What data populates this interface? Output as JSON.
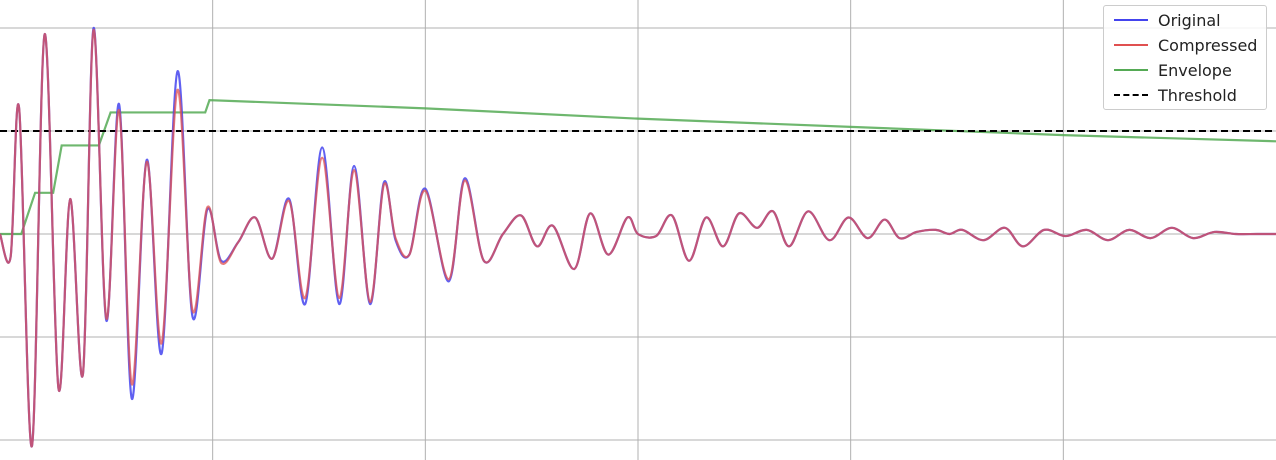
{
  "chart_data": {
    "type": "line",
    "xlim": [
      0,
      1.2
    ],
    "ylim": [
      -1.0,
      1.0
    ],
    "grid": true,
    "legend_placement": "top-right",
    "threshold": 0.5,
    "series": [
      {
        "name": "Original",
        "color": "#4444ee",
        "style": "solid",
        "x": [
          0.0,
          0.01,
          0.018,
          0.03,
          0.042,
          0.055,
          0.066,
          0.078,
          0.088,
          0.1,
          0.112,
          0.124,
          0.138,
          0.152,
          0.167,
          0.181,
          0.195,
          0.208,
          0.224,
          0.24,
          0.256,
          0.272,
          0.287,
          0.303,
          0.319,
          0.333,
          0.348,
          0.361,
          0.372,
          0.385,
          0.4,
          0.422,
          0.437,
          0.455,
          0.473,
          0.49,
          0.505,
          0.52,
          0.54,
          0.555,
          0.572,
          0.59,
          0.6,
          0.617,
          0.632,
          0.648,
          0.664,
          0.68,
          0.695,
          0.712,
          0.727,
          0.742,
          0.76,
          0.78,
          0.798,
          0.816,
          0.832,
          0.846,
          0.862,
          0.88,
          0.893,
          0.905,
          0.925,
          0.945,
          0.962,
          0.982,
          1.002,
          1.022,
          1.042,
          1.062,
          1.082,
          1.102,
          1.122,
          1.142,
          1.162,
          1.182,
          1.2
        ],
        "y": [
          0.0,
          -0.11,
          0.61,
          -1.03,
          0.97,
          -0.75,
          0.17,
          -0.68,
          1.0,
          -0.42,
          0.63,
          -0.8,
          0.36,
          -0.58,
          0.79,
          -0.4,
          0.12,
          -0.13,
          -0.04,
          0.08,
          -0.12,
          0.17,
          -0.34,
          0.42,
          -0.34,
          0.33,
          -0.34,
          0.25,
          -0.03,
          -0.1,
          0.22,
          -0.23,
          0.27,
          -0.13,
          0.0,
          0.09,
          -0.06,
          0.04,
          -0.17,
          0.1,
          -0.1,
          0.08,
          0.0,
          -0.01,
          0.09,
          -0.13,
          0.08,
          -0.06,
          0.1,
          0.03,
          0.11,
          -0.06,
          0.11,
          -0.03,
          0.08,
          -0.02,
          0.07,
          -0.02,
          0.01,
          0.02,
          0.0,
          0.02,
          -0.03,
          0.03,
          -0.06,
          0.02,
          -0.01,
          0.02,
          -0.03,
          0.02,
          -0.02,
          0.03,
          -0.02,
          0.01,
          0.0,
          0.0,
          0.0
        ]
      },
      {
        "name": "Compressed",
        "color": "#e05050",
        "style": "solid",
        "x": [
          0.0,
          0.01,
          0.018,
          0.03,
          0.042,
          0.055,
          0.066,
          0.078,
          0.088,
          0.1,
          0.112,
          0.124,
          0.138,
          0.152,
          0.167,
          0.181,
          0.195,
          0.208,
          0.224,
          0.24,
          0.256,
          0.272,
          0.287,
          0.303,
          0.319,
          0.333,
          0.348,
          0.361,
          0.372,
          0.385,
          0.4,
          0.422,
          0.437,
          0.455,
          0.473,
          0.49,
          0.505,
          0.52,
          0.54,
          0.555,
          0.572,
          0.59,
          0.6,
          0.617,
          0.632,
          0.648,
          0.664,
          0.68,
          0.695,
          0.712,
          0.727,
          0.742,
          0.76,
          0.78,
          0.798,
          0.816,
          0.832,
          0.846,
          0.862,
          0.88,
          0.893,
          0.905,
          0.925,
          0.945,
          0.962,
          0.982,
          1.002,
          1.022,
          1.042,
          1.062,
          1.082,
          1.102,
          1.122,
          1.142,
          1.162,
          1.182,
          1.2
        ],
        "y": [
          0.0,
          -0.11,
          0.61,
          -1.03,
          0.97,
          -0.75,
          0.17,
          -0.68,
          0.99,
          -0.41,
          0.6,
          -0.73,
          0.35,
          -0.53,
          0.7,
          -0.37,
          0.13,
          -0.14,
          -0.04,
          0.08,
          -0.12,
          0.16,
          -0.31,
          0.37,
          -0.31,
          0.31,
          -0.33,
          0.24,
          -0.02,
          -0.1,
          0.21,
          -0.22,
          0.26,
          -0.13,
          0.0,
          0.09,
          -0.06,
          0.04,
          -0.17,
          0.1,
          -0.1,
          0.08,
          0.0,
          -0.01,
          0.09,
          -0.13,
          0.08,
          -0.06,
          0.1,
          0.03,
          0.11,
          -0.06,
          0.11,
          -0.03,
          0.08,
          -0.02,
          0.07,
          -0.02,
          0.01,
          0.02,
          0.0,
          0.02,
          -0.03,
          0.03,
          -0.06,
          0.02,
          -0.01,
          0.02,
          -0.03,
          0.02,
          -0.02,
          0.03,
          -0.02,
          0.01,
          0.0,
          0.0,
          0.0
        ]
      },
      {
        "name": "Envelope",
        "color": "#55aa55",
        "style": "solid",
        "x": [
          0.0,
          0.02,
          0.033,
          0.05,
          0.058,
          0.093,
          0.104,
          0.152,
          0.186,
          0.193,
          0.197,
          0.4,
          0.6,
          0.8,
          1.0,
          1.2
        ],
        "y": [
          0.0,
          0.0,
          0.2,
          0.2,
          0.43,
          0.43,
          0.59,
          0.59,
          0.59,
          0.59,
          0.65,
          0.61,
          0.56,
          0.52,
          0.48,
          0.45
        ]
      },
      {
        "name": "Threshold",
        "color": "#000000",
        "style": "dashed",
        "x": [
          0.0,
          1.2
        ],
        "y": [
          0.5,
          0.5
        ]
      }
    ]
  }
}
